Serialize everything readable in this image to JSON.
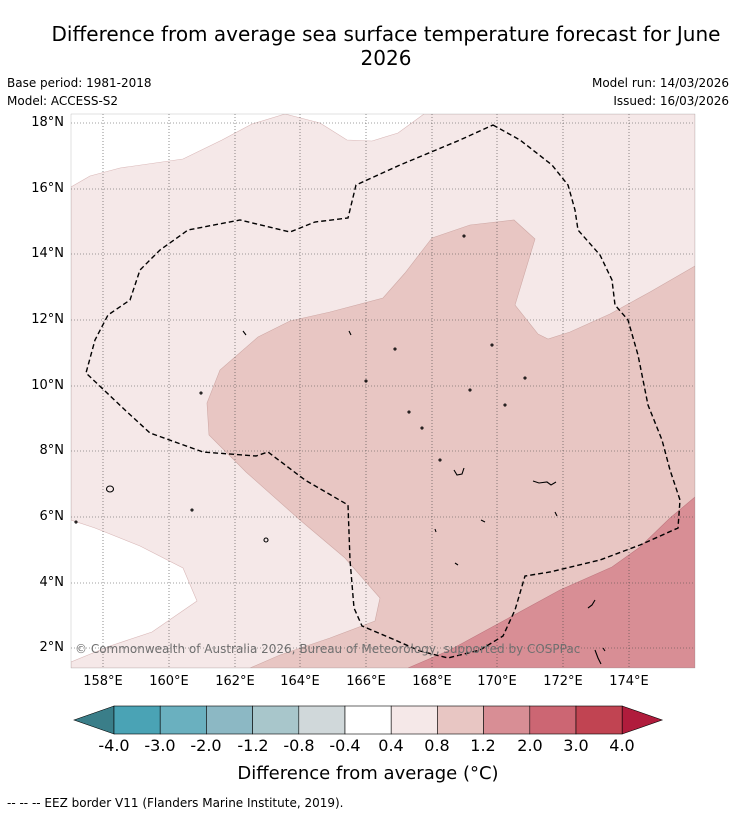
{
  "title": "Difference from average sea surface temperature forecast for June 2026",
  "meta": {
    "base_period": "Base period: 1981-2018",
    "model": "Model: ACCESS-S2",
    "model_run": "Model run: 14/03/2026",
    "issued": "Issued: 16/03/2026"
  },
  "map": {
    "lat_labels": [
      "18°N",
      "16°N",
      "14°N",
      "12°N",
      "10°N",
      "8°N",
      "6°N",
      "4°N",
      "2°N"
    ],
    "lon_labels": [
      "158°E",
      "160°E",
      "162°E",
      "164°E",
      "166°E",
      "168°E",
      "170°E",
      "172°E",
      "174°E"
    ],
    "copyright": "© Commonwealth of Australia 2026, Bureau of Meteorology, supported by COSPPac"
  },
  "colorbar": {
    "labels": [
      "-4.0",
      "-3.0",
      "-2.0",
      "-1.2",
      "-0.8",
      "-0.4",
      "0.4",
      "0.8",
      "1.2",
      "2.0",
      "3.0",
      "4.0"
    ],
    "colors": [
      "#3a7e89",
      "#4aa3b5",
      "#6ab0bf",
      "#8cb8c4",
      "#a8c6cb",
      "#d0d8da",
      "#ffffff",
      "#f5e8e8",
      "#e8c6c3",
      "#d88e95",
      "#cc6673",
      "#c14452",
      "#b01c3c"
    ],
    "title": "Difference from average (°C)"
  },
  "footer": "--  --  -- EEZ border V11 (Flanders Marine Institute, 2019)."
}
